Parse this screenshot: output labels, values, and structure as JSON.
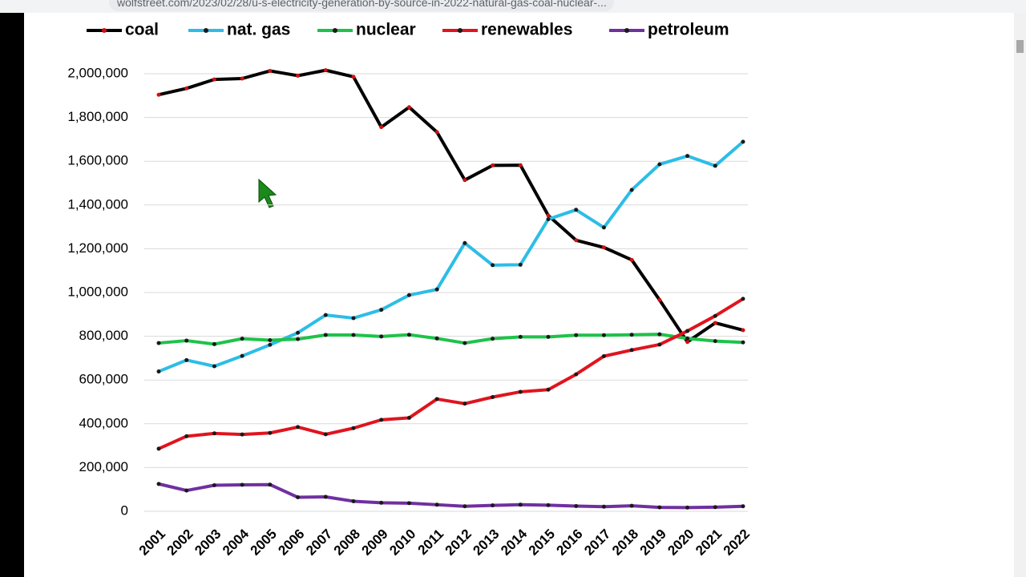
{
  "browser": {
    "url": "wolfstreet.com/2023/02/28/u-s-electricity-generation-by-source-in-2022-natural-gas-coal-nuclear-..."
  },
  "chart_data": {
    "type": "line",
    "categories": [
      "2001",
      "2002",
      "2003",
      "2004",
      "2005",
      "2006",
      "2007",
      "2008",
      "2009",
      "2010",
      "2011",
      "2012",
      "2013",
      "2014",
      "2015",
      "2016",
      "2017",
      "2018",
      "2019",
      "2020",
      "2021",
      "2022"
    ],
    "series": [
      {
        "name": "coal",
        "color": "#000000",
        "marker_color": "#d01010",
        "values": [
          1904000,
          1933000,
          1974000,
          1978000,
          2013000,
          1991000,
          2016000,
          1986000,
          1756000,
          1847000,
          1733000,
          1514000,
          1581000,
          1582000,
          1352000,
          1239000,
          1206000,
          1149000,
          966000,
          774000,
          861000,
          828000
        ]
      },
      {
        "name": "nat. gas",
        "color": "#2dbde6",
        "marker_color": "#1a1a1a",
        "values": [
          639000,
          691000,
          663000,
          710000,
          761000,
          816000,
          897000,
          883000,
          921000,
          988000,
          1014000,
          1226000,
          1125000,
          1127000,
          1335000,
          1378000,
          1297000,
          1469000,
          1586000,
          1624000,
          1579000,
          1689000
        ]
      },
      {
        "name": "nuclear",
        "color": "#1fc24a",
        "marker_color": "#1a1a1a",
        "values": [
          769000,
          780000,
          764000,
          789000,
          782000,
          787000,
          806000,
          806000,
          799000,
          807000,
          790000,
          769000,
          789000,
          797000,
          797000,
          805000,
          805000,
          807000,
          809000,
          790000,
          778000,
          772000
        ]
      },
      {
        "name": "renewables",
        "color": "#e0141e",
        "marker_color": "#1a1a1a",
        "values": [
          286000,
          343000,
          356000,
          351000,
          358000,
          385000,
          352000,
          380000,
          418000,
          427000,
          513000,
          492000,
          522000,
          546000,
          556000,
          626000,
          709000,
          737000,
          762000,
          824000,
          893000,
          971000
        ]
      },
      {
        "name": "petroleum",
        "color": "#7030a0",
        "marker_color": "#1a1a1a",
        "values": [
          125000,
          95000,
          119000,
          121000,
          122000,
          64000,
          66000,
          46000,
          39000,
          37000,
          30000,
          23000,
          27000,
          30000,
          28000,
          24000,
          21000,
          25000,
          18000,
          17000,
          19000,
          23000
        ]
      }
    ],
    "ylim": [
      0,
      2000000
    ],
    "yticks": [
      0,
      {
        "value": 200000,
        "label": "200,000"
      },
      {
        "value": 400000,
        "label": "400,000"
      },
      {
        "value": 600000,
        "label": "600,000"
      },
      {
        "value": 800000,
        "label": "800,000"
      },
      {
        "value": 1000000,
        "label": "1,000,000"
      },
      {
        "value": 1200000,
        "label": "1,200,000"
      },
      {
        "value": 1400000,
        "label": "1,400,000"
      },
      {
        "value": 1600000,
        "label": "1,600,000"
      },
      {
        "value": 1800000,
        "label": "1,800,000"
      },
      {
        "value": 2000000,
        "label": "2,000,000"
      }
    ],
    "grid": true,
    "legend": "top"
  }
}
